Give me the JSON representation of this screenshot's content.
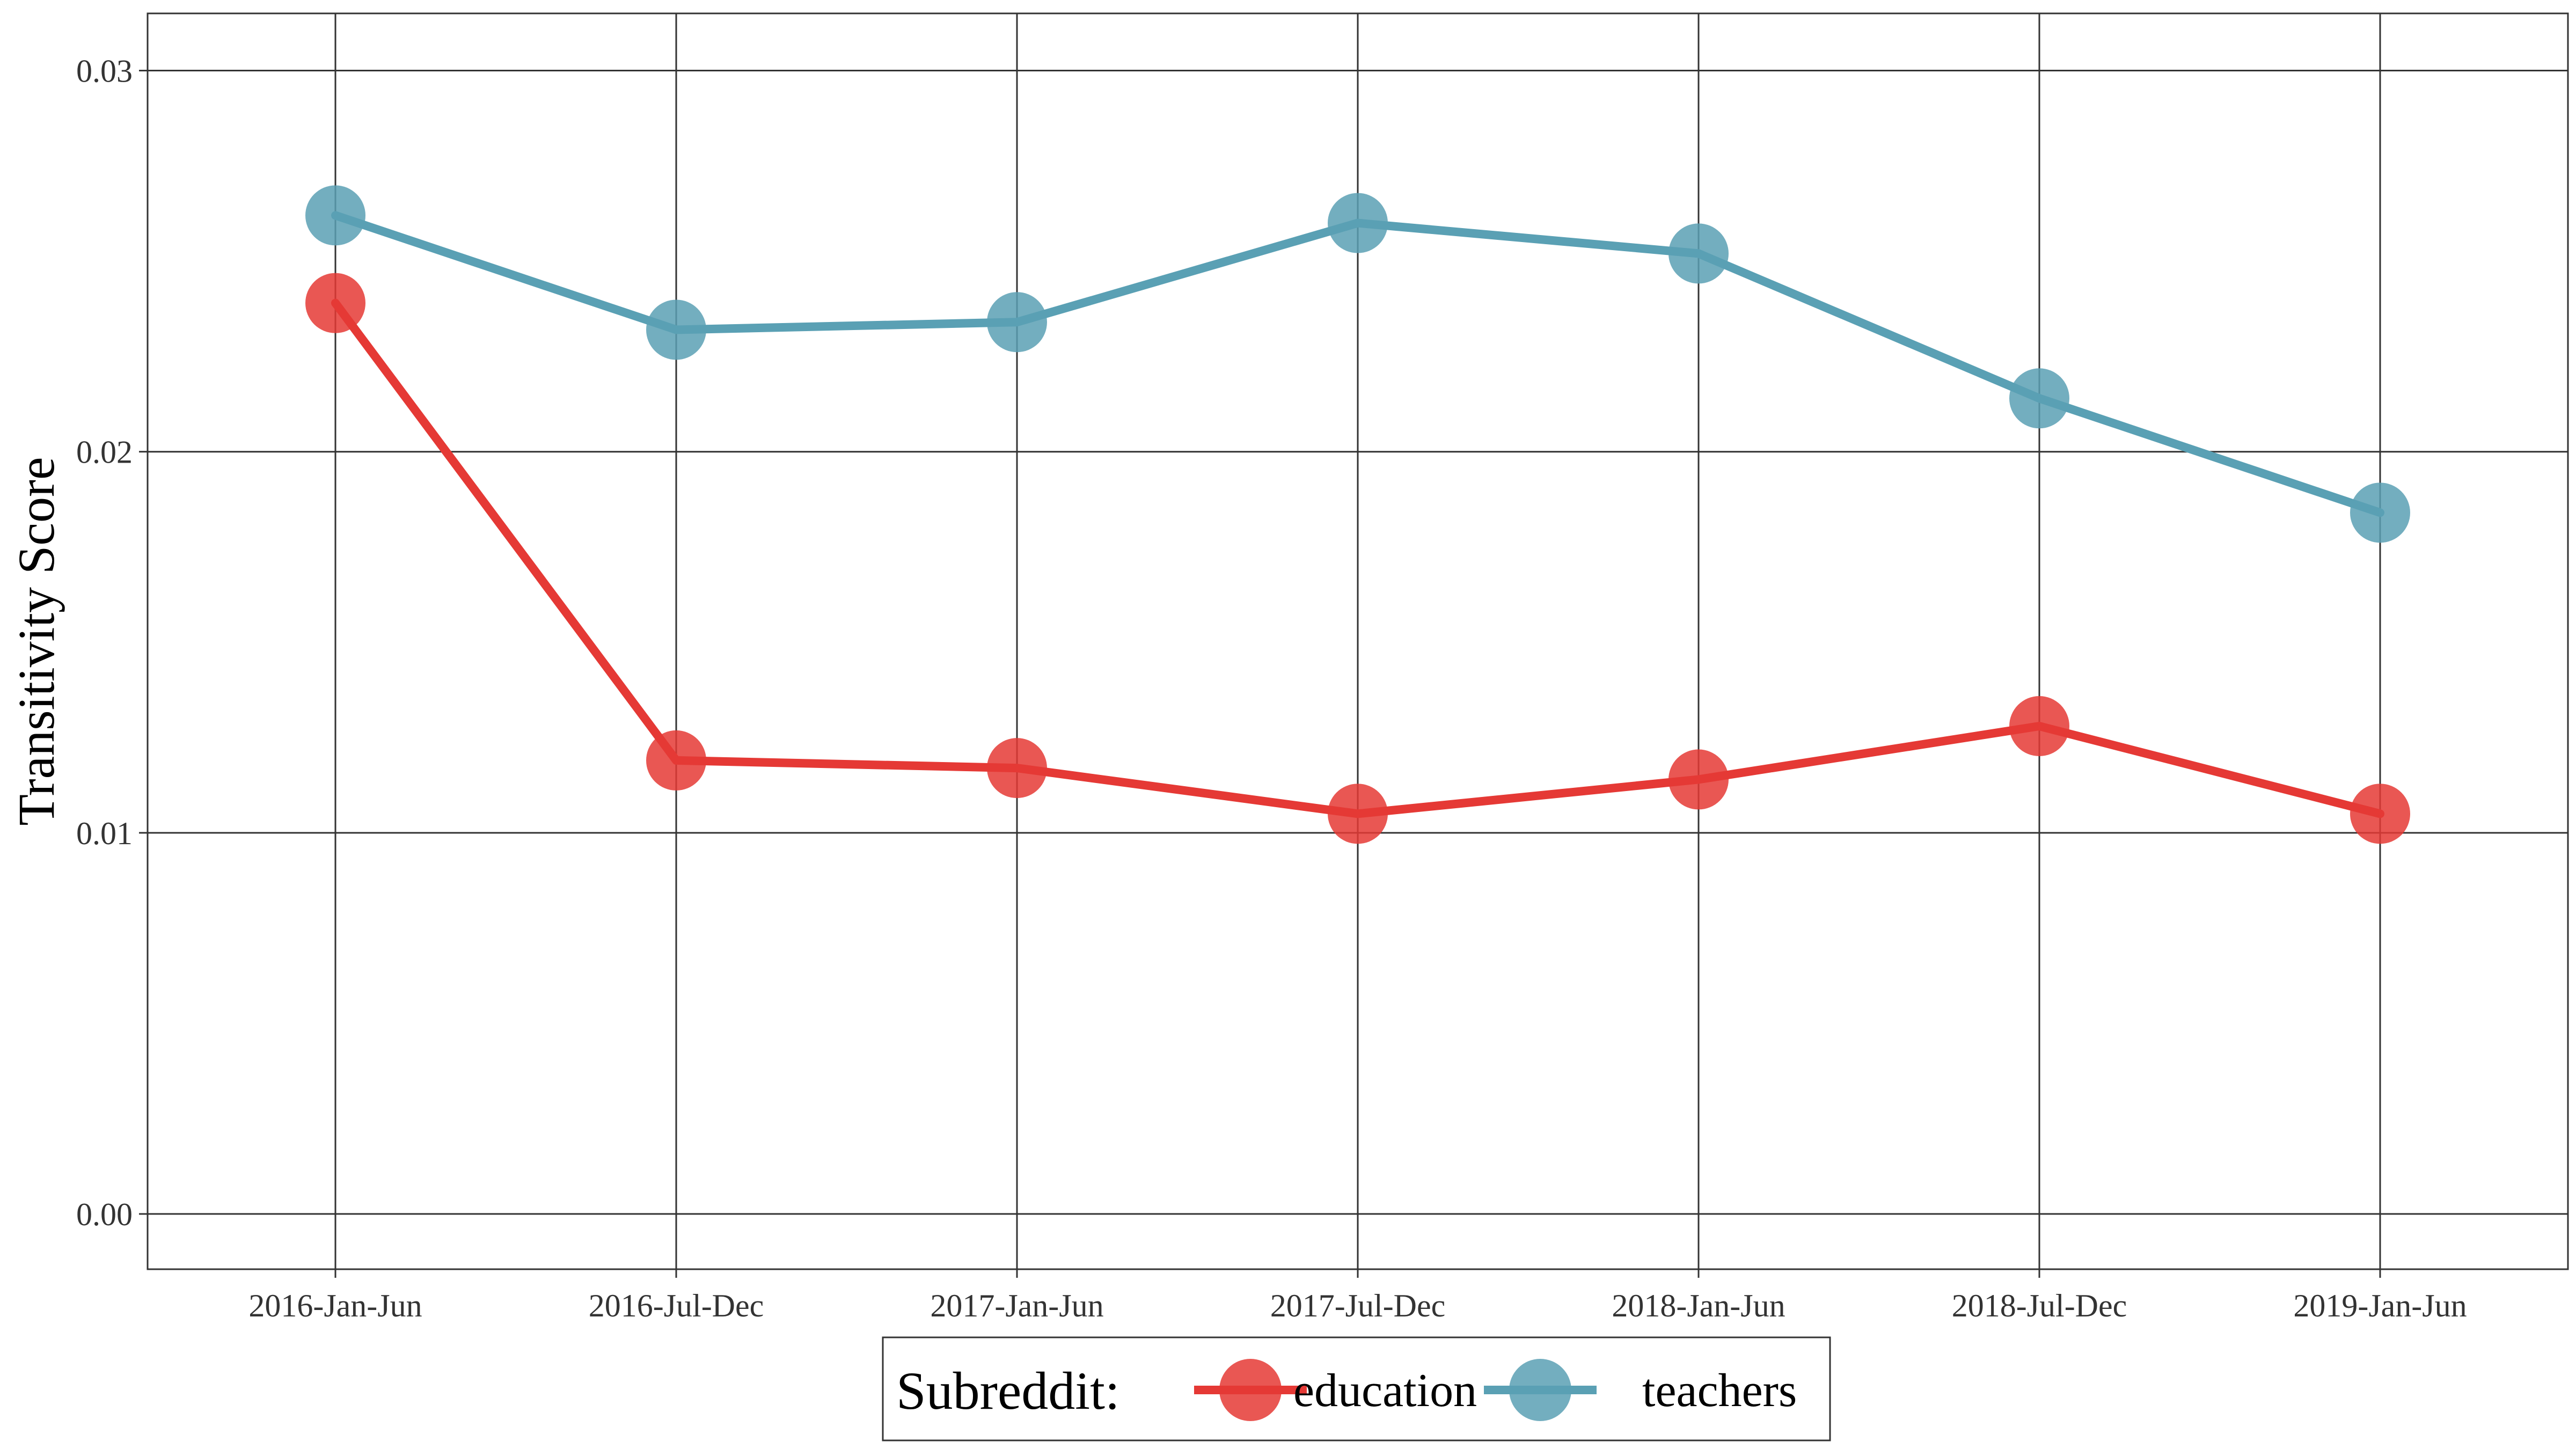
{
  "chart_data": {
    "type": "line",
    "categories": [
      "2016-Jan-Jun",
      "2016-Jul-Dec",
      "2017-Jan-Jun",
      "2017-Jul-Dec",
      "2018-Jan-Jun",
      "2018-Jul-Dec",
      "2019-Jan-Jun"
    ],
    "series": [
      {
        "name": "education",
        "color": "#e53935",
        "values": [
          0.0239,
          0.0119,
          0.0117,
          0.0105,
          0.0114,
          0.0128,
          0.0105
        ]
      },
      {
        "name": "teachers",
        "color": "#5aa0b4",
        "values": [
          0.0262,
          0.0232,
          0.0234,
          0.026,
          0.0252,
          0.0214,
          0.0184
        ]
      }
    ],
    "title": "",
    "xlabel": "",
    "ylabel": "Transitivity Score",
    "ylim": [
      -0.00145,
      0.0315
    ],
    "yticks": [
      0.0,
      0.01,
      0.02,
      0.03
    ],
    "ytick_labels": [
      "0.00",
      "0.01",
      "0.02",
      "0.03"
    ],
    "grid": true,
    "legend": {
      "title": "Subreddit:",
      "position": "bottom"
    }
  }
}
